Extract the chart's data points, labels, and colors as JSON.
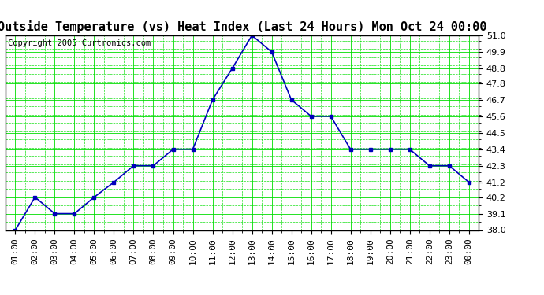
{
  "title": "Outside Temperature (vs) Heat Index (Last 24 Hours) Mon Oct 24 00:00",
  "copyright": "Copyright 2005 Curtronics.com",
  "x_labels": [
    "01:00",
    "02:00",
    "03:00",
    "04:00",
    "05:00",
    "06:00",
    "07:00",
    "08:00",
    "09:00",
    "10:00",
    "11:00",
    "12:00",
    "13:00",
    "14:00",
    "15:00",
    "16:00",
    "17:00",
    "18:00",
    "19:00",
    "20:00",
    "21:00",
    "22:00",
    "23:00",
    "00:00"
  ],
  "y_values": [
    38.0,
    40.2,
    39.1,
    39.1,
    40.2,
    41.2,
    42.3,
    42.3,
    43.4,
    43.4,
    46.7,
    48.8,
    51.0,
    49.9,
    46.7,
    45.6,
    45.6,
    43.4,
    43.4,
    43.4,
    43.4,
    42.3,
    42.3,
    41.2
  ],
  "ylim_min": 38.0,
  "ylim_max": 51.0,
  "yticks": [
    38.0,
    39.1,
    40.2,
    41.2,
    42.3,
    43.4,
    44.5,
    45.6,
    46.7,
    47.8,
    48.8,
    49.9,
    51.0
  ],
  "line_color": "#0000bb",
  "marker_color": "#0000bb",
  "bg_color": "#ffffff",
  "plot_bg_color": "#ffffff",
  "grid_color_major": "#00dd00",
  "grid_color_minor": "#00dd00",
  "title_fontsize": 11,
  "tick_fontsize": 8,
  "copyright_fontsize": 7.5
}
